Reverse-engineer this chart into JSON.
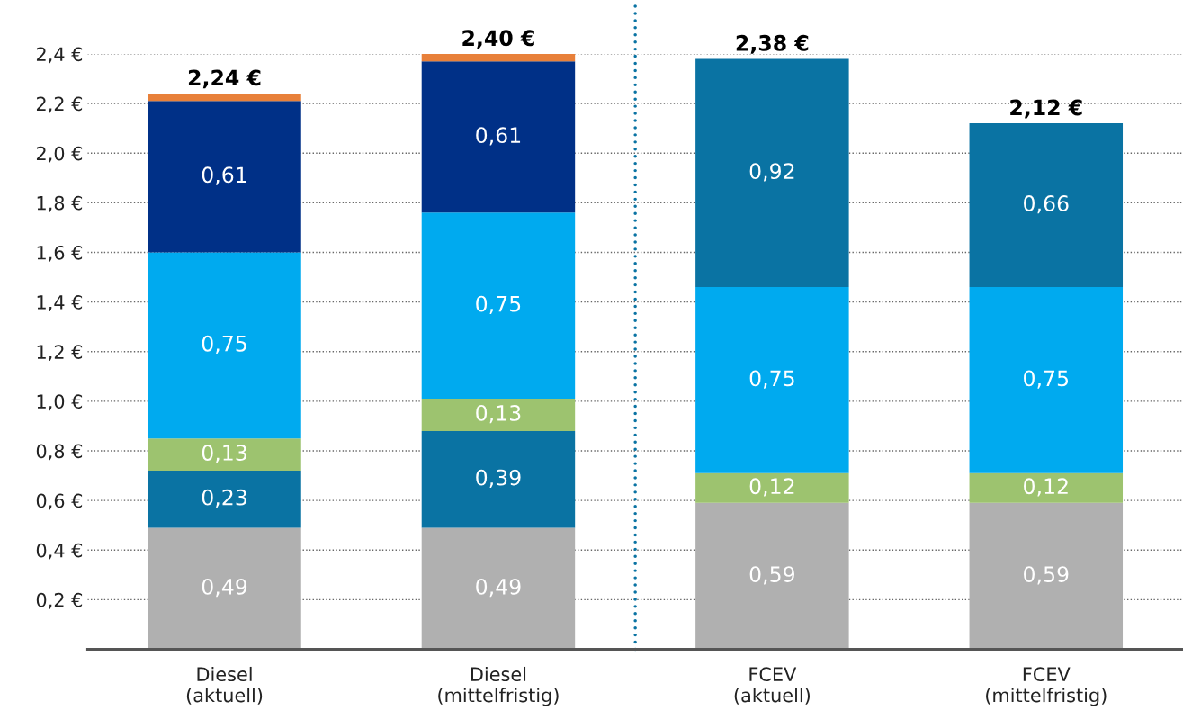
{
  "chart_data": {
    "type": "bar",
    "stacked": true,
    "categories": [
      "Diesel\n(aktuell)",
      "Diesel\n(mittelfristig)",
      "FCEV\n(aktuell)",
      "FCEV\n(mittelfristig)"
    ],
    "series": [
      {
        "color": "#b0b0b0",
        "values": [
          0.49,
          0.49,
          0.59,
          0.59
        ],
        "value_labels": [
          "0,49",
          "0,49",
          "0,59",
          "0,59"
        ]
      },
      {
        "color": "#0a73a3",
        "values": [
          0.23,
          0.39,
          null,
          null
        ],
        "value_labels": [
          "0,23",
          "0,39",
          null,
          null
        ]
      },
      {
        "color": "#9dc36f",
        "values": [
          0.13,
          0.13,
          0.12,
          0.12
        ],
        "value_labels": [
          "0,13",
          "0,13",
          "0,12",
          "0,12"
        ]
      },
      {
        "color": "#00aaef",
        "values": [
          0.75,
          0.75,
          0.75,
          0.75
        ],
        "value_labels": [
          "0,75",
          "0,75",
          "0,75",
          "0,75"
        ]
      },
      {
        "color": "#0a73a3",
        "values": [
          null,
          null,
          0.92,
          0.66
        ],
        "value_labels": [
          null,
          null,
          "0,92",
          "0,66"
        ]
      },
      {
        "color": "#003087",
        "values": [
          0.61,
          0.61,
          null,
          null
        ],
        "value_labels": [
          "0,61",
          "0,61",
          null,
          null
        ]
      },
      {
        "color": "#e8803a",
        "values": [
          0.03,
          0.03,
          null,
          null
        ],
        "value_labels": [
          null,
          null,
          null,
          null
        ]
      }
    ],
    "totals": [
      "2,24 €",
      "2,40 €",
      "2,38 €",
      "2,12 €"
    ],
    "ylim": [
      0,
      2.4
    ],
    "yticks": [
      {
        "value": 0.2,
        "label": "0,2 €"
      },
      {
        "value": 0.4,
        "label": "0,4 €"
      },
      {
        "value": 0.6,
        "label": "0,6 €"
      },
      {
        "value": 0.8,
        "label": "0,8 €"
      },
      {
        "value": 1.0,
        "label": "1,0 €"
      },
      {
        "value": 1.2,
        "label": "1,2 €"
      },
      {
        "value": 1.4,
        "label": "1,4 €"
      },
      {
        "value": 1.6,
        "label": "1,6 €"
      },
      {
        "value": 1.8,
        "label": "1,8 €"
      },
      {
        "value": 2.0,
        "label": "2,0 €"
      },
      {
        "value": 2.2,
        "label": "2,2 €"
      },
      {
        "value": 2.4,
        "label": "2,4 €"
      }
    ],
    "grid": "y"
  }
}
